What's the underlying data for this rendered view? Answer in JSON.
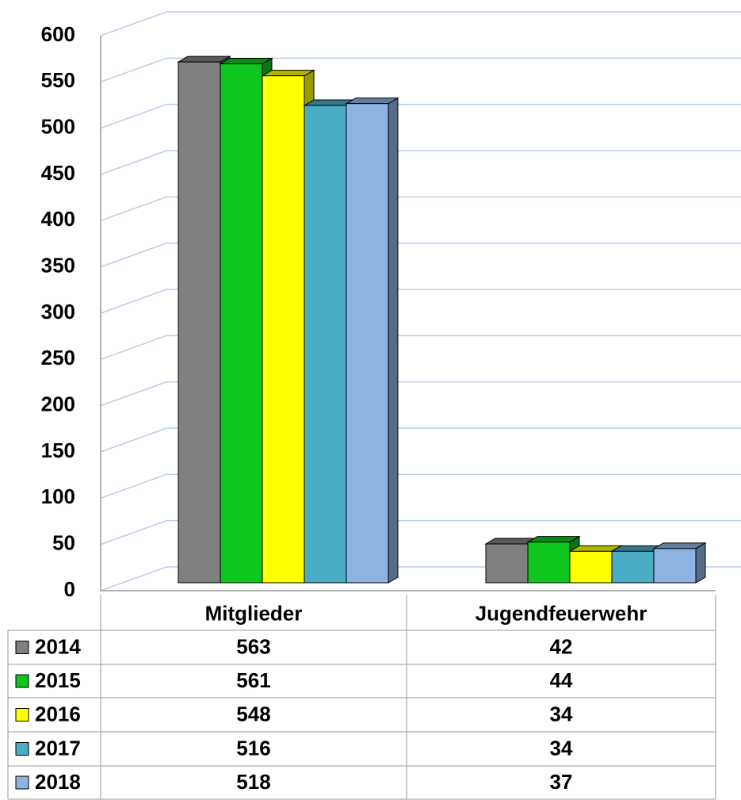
{
  "chart_data": {
    "type": "bar3d",
    "categories": [
      "Mitglieder",
      "Jugendfeuerwehr"
    ],
    "series": [
      {
        "name": "2014",
        "color": "#808080",
        "values": [
          563,
          42
        ]
      },
      {
        "name": "2015",
        "color": "#0ec61e",
        "values": [
          561,
          44
        ]
      },
      {
        "name": "2016",
        "color": "#ffff00",
        "values": [
          548,
          34
        ]
      },
      {
        "name": "2017",
        "color": "#4bacc6",
        "values": [
          516,
          34
        ]
      },
      {
        "name": "2018",
        "color": "#8db3e2",
        "values": [
          518,
          37
        ]
      }
    ],
    "ylim": [
      0,
      600
    ],
    "yticks": [
      0,
      50,
      100,
      150,
      200,
      250,
      300,
      350,
      400,
      450,
      500,
      550,
      600
    ],
    "grid": true,
    "legend": "table"
  }
}
